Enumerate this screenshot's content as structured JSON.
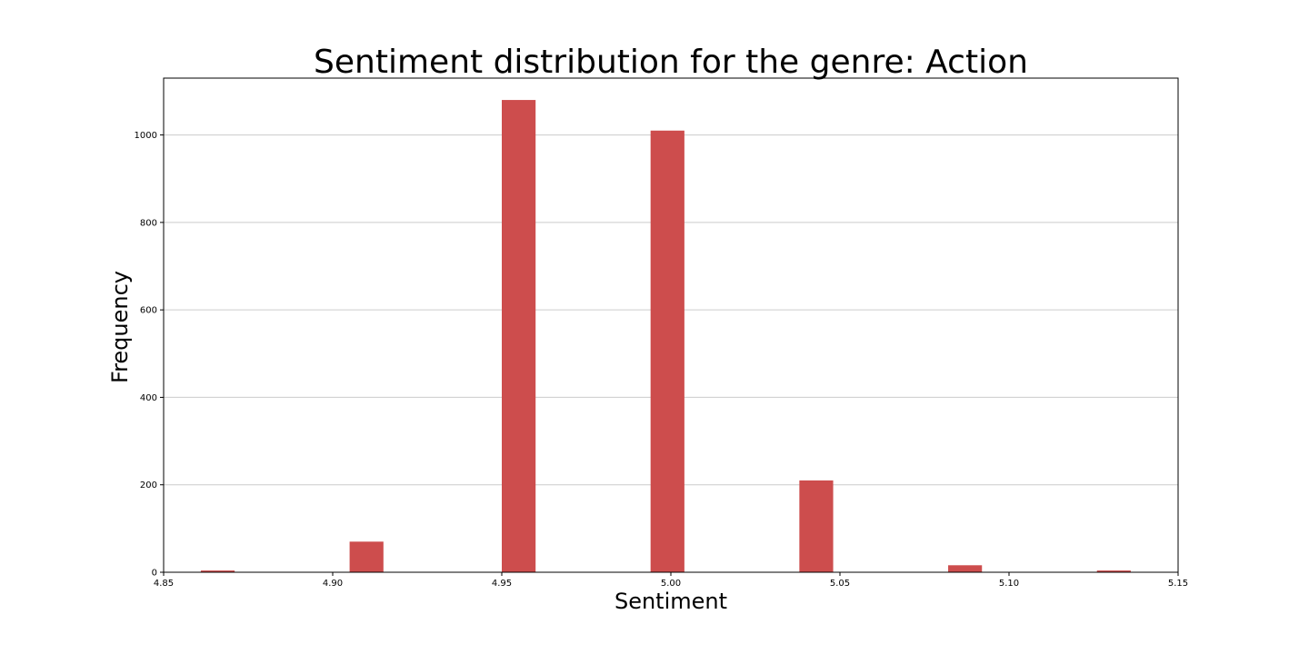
{
  "chart_data": {
    "type": "bar",
    "title": "Sentiment distribution for the genre: Action",
    "xlabel": "Sentiment",
    "ylabel": "Frequency",
    "xlim": [
      4.85,
      5.15
    ],
    "ylim": [
      0,
      1130
    ],
    "x_ticks": [
      "4.85",
      "4.90",
      "4.95",
      "5.00",
      "5.05",
      "5.10",
      "5.15"
    ],
    "y_ticks": [
      "0",
      "200",
      "400",
      "600",
      "800",
      "1000"
    ],
    "bin_width": 0.01,
    "grid": "horizontal",
    "bar_color": "#cd4d4d",
    "bins": [
      {
        "x": 4.866,
        "value": 4
      },
      {
        "x": 4.91,
        "value": 70
      },
      {
        "x": 4.955,
        "value": 1080
      },
      {
        "x": 4.999,
        "value": 1010
      },
      {
        "x": 5.043,
        "value": 210
      },
      {
        "x": 5.087,
        "value": 16
      },
      {
        "x": 5.131,
        "value": 4
      }
    ]
  }
}
